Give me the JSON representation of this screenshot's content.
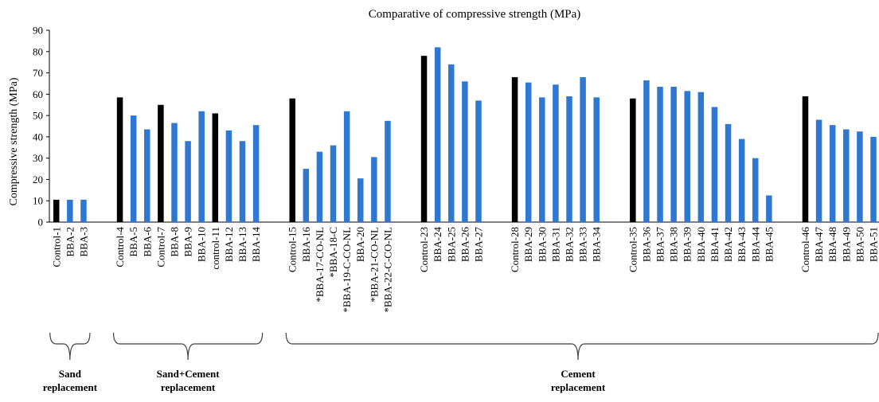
{
  "chart_data": {
    "type": "bar",
    "title": "Comparative of compressive strength (MPa)",
    "ylabel": "Compressive strength (MPa)",
    "xlabel": "",
    "ylim": [
      0,
      90
    ],
    "yticks": [
      0,
      10,
      20,
      30,
      40,
      50,
      60,
      70,
      80,
      90
    ],
    "grid": false,
    "legend": "none",
    "colors": {
      "control": "#000000",
      "bba": "#2e78d2",
      "axis": "#000000",
      "bracket": "#404040"
    },
    "categories": [
      "Control-1",
      "BBA-2",
      "BBA-3",
      "Control-4",
      "BBA-5",
      "BBA-6",
      "Control-7",
      "BBA-8",
      "BBA-9",
      "BBA-10",
      "control-11",
      "BBA-12",
      "BBA-13",
      "BBA-14",
      "Control-15",
      "BBA-16",
      "*BBA-17-CO-NL",
      "*BBA-18-C",
      "*BBA-19-C-CO-NL",
      "BBA-20",
      "*BBA-21-CO-NL",
      "*BBA-22-C-CO-NL",
      "Control-23",
      "BBA-24",
      "BBA-25",
      "BBA-26",
      "BBA-27",
      "Control-28",
      "BBA-29",
      "BBA-30",
      "BBA-31",
      "BBA-32",
      "BBA-33",
      "BBA-34",
      "Control-35",
      "BBA-36",
      "BBA-37",
      "BBA-38",
      "BBA-39",
      "BBA-40",
      "BBA-41",
      "BBA-42",
      "BBA-43",
      "BBA-44",
      "BBA-45",
      "Control-46",
      "BBA-47",
      "BBA-48",
      "BBA-49",
      "BBA-50",
      "BBA-51"
    ],
    "values": [
      10.5,
      10.5,
      10.5,
      58.5,
      50,
      43.5,
      55,
      46.5,
      38,
      52,
      51,
      43,
      38,
      45.5,
      58,
      25,
      33,
      36,
      52,
      20.5,
      30.5,
      47.5,
      78,
      82,
      74,
      66,
      57,
      68,
      65.5,
      58.5,
      64.5,
      59,
      68,
      58.5,
      58,
      66.5,
      63.5,
      63.5,
      61.5,
      61,
      54,
      46,
      39,
      30,
      12.5,
      59,
      48,
      45.5,
      43.5,
      42.5,
      40
    ],
    "is_control": [
      true,
      false,
      false,
      true,
      false,
      false,
      true,
      false,
      false,
      false,
      true,
      false,
      false,
      false,
      true,
      false,
      false,
      false,
      false,
      false,
      false,
      false,
      true,
      false,
      false,
      false,
      false,
      true,
      false,
      false,
      false,
      false,
      false,
      false,
      true,
      false,
      false,
      false,
      false,
      false,
      false,
      false,
      false,
      false,
      false,
      true,
      false,
      false,
      false,
      false,
      false
    ],
    "groups": [
      3,
      11,
      8,
      5,
      7,
      11,
      6
    ],
    "annotations": [
      {
        "label": [
          "Sand",
          "replacement"
        ],
        "from_category": 0,
        "to_category": 2
      },
      {
        "label": [
          "Sand+Cement",
          "replacement"
        ],
        "from_category": 3,
        "to_category": 13
      },
      {
        "label": [
          "Cement",
          "replacement"
        ],
        "from_category": 14,
        "to_category": 50
      }
    ]
  }
}
